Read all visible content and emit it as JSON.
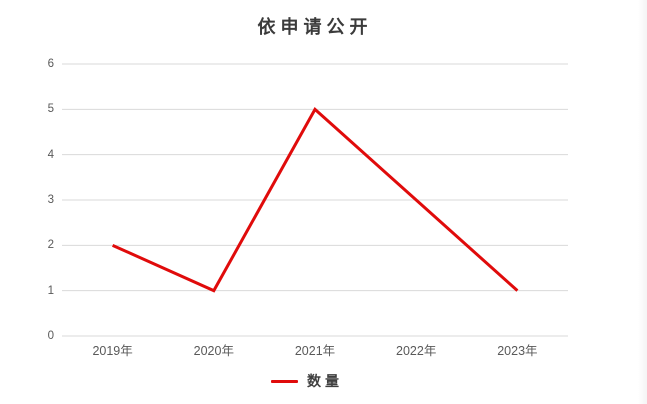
{
  "window": {
    "background": "#ffffff"
  },
  "chart_data": {
    "type": "line",
    "title": "依申请公开",
    "categories": [
      "2019年",
      "2020年",
      "2021年",
      "2022年",
      "2023年"
    ],
    "series": [
      {
        "name": "数量",
        "color": "#e00b0b",
        "values": [
          2,
          1,
          5,
          3,
          1
        ]
      }
    ],
    "xlabel": "",
    "ylabel": "",
    "ylim": [
      0,
      6
    ],
    "ytick_step": 1,
    "yticks": [
      0,
      1,
      2,
      3,
      4,
      5,
      6
    ],
    "grid": "horizontal",
    "legend_position": "bottom"
  },
  "colors": {
    "gridline": "#d9d9d9",
    "axis_label": "#595959",
    "title_text": "#3b3b3b",
    "series_red": "#e00b0b"
  }
}
